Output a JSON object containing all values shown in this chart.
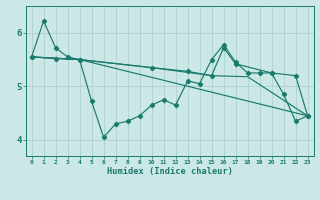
{
  "xlabel": "Humidex (Indice chaleur)",
  "bg_color": "#cce8e6",
  "line_color": "#1a7a6e",
  "grid_color": "#a8ccca",
  "xlim": [
    -0.5,
    23.5
  ],
  "ylim": [
    3.7,
    6.5
  ],
  "xticks": [
    0,
    1,
    2,
    3,
    4,
    5,
    6,
    7,
    8,
    9,
    10,
    11,
    12,
    13,
    14,
    15,
    16,
    17,
    18,
    19,
    20,
    21,
    22,
    23
  ],
  "yticks": [
    4,
    5,
    6
  ],
  "line1_x": [
    0,
    1,
    2,
    3,
    4,
    5,
    6,
    7,
    8,
    9,
    10,
    11,
    12,
    13,
    14,
    15,
    16,
    17,
    18,
    19,
    20,
    21,
    22,
    23
  ],
  "line1_y": [
    5.55,
    6.22,
    5.72,
    5.55,
    5.5,
    4.72,
    4.05,
    4.3,
    4.35,
    4.45,
    4.65,
    4.75,
    4.65,
    5.1,
    5.05,
    5.5,
    5.78,
    5.45,
    5.25,
    5.25,
    5.25,
    4.85,
    4.35,
    4.45
  ],
  "line2_x": [
    0,
    2,
    4,
    10,
    13,
    15,
    16,
    17,
    20,
    22,
    23
  ],
  "line2_y": [
    5.55,
    5.52,
    5.5,
    5.35,
    5.28,
    5.2,
    5.72,
    5.42,
    5.25,
    5.2,
    4.45
  ],
  "line3_x": [
    0,
    4,
    10,
    15,
    18,
    23
  ],
  "line3_y": [
    5.55,
    5.5,
    5.35,
    5.2,
    5.18,
    4.45
  ],
  "line4_x": [
    0,
    4,
    23
  ],
  "line4_y": [
    5.55,
    5.5,
    4.45
  ]
}
